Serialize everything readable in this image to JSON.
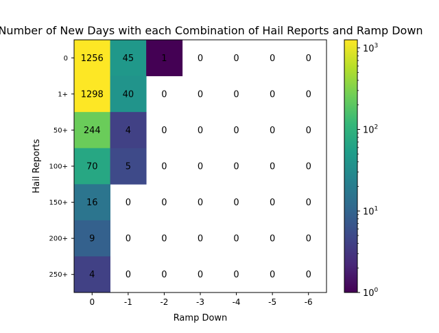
{
  "chart_data": {
    "type": "heatmap",
    "title": "Number of New Days with each Combination of Hail Reports and Ramp Down",
    "xlabel": "Ramp Down",
    "ylabel": "Hail Reports",
    "x_categories": [
      "0",
      "-1",
      "-2",
      "-3",
      "-4",
      "-5",
      "-6"
    ],
    "y_categories": [
      "0",
      "1+",
      "50+",
      "100+",
      "150+",
      "200+",
      "250+"
    ],
    "values": [
      [
        1256,
        45,
        1,
        0,
        0,
        0,
        0
      ],
      [
        1298,
        40,
        0,
        0,
        0,
        0,
        0
      ],
      [
        244,
        4,
        0,
        0,
        0,
        0,
        0
      ],
      [
        70,
        5,
        0,
        0,
        0,
        0,
        0
      ],
      [
        16,
        0,
        0,
        0,
        0,
        0,
        0
      ],
      [
        9,
        0,
        0,
        0,
        0,
        0,
        0
      ],
      [
        4,
        0,
        0,
        0,
        0,
        0,
        0
      ]
    ],
    "colorbar": {
      "scale": "log",
      "range": [
        1,
        1256
      ],
      "tick_values": [
        1,
        10,
        100,
        1000
      ],
      "tick_labels": [
        {
          "base": "10",
          "exp": "0"
        },
        {
          "base": "10",
          "exp": "1"
        },
        {
          "base": "10",
          "exp": "2"
        },
        {
          "base": "10",
          "exp": "3"
        }
      ],
      "colormap": "viridis"
    },
    "zero_cells": "blank"
  }
}
